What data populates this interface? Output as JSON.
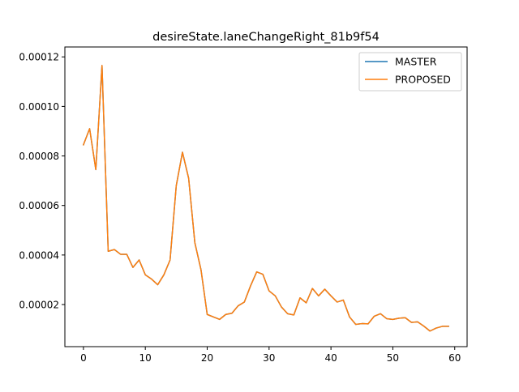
{
  "chart_data": {
    "type": "line",
    "title": "desireState.laneChangeRight_81b9f54",
    "xlabel": "",
    "ylabel": "",
    "xlim": [
      -3,
      62
    ],
    "ylim": [
      3e-06,
      0.000124
    ],
    "xticks": [
      0,
      10,
      20,
      30,
      40,
      50,
      60
    ],
    "xtick_labels": [
      "0",
      "10",
      "20",
      "30",
      "40",
      "50",
      "60"
    ],
    "yticks": [
      2e-05,
      4e-05,
      6e-05,
      8e-05,
      0.0001,
      0.00012
    ],
    "ytick_labels": [
      "0.00002",
      "0.00004",
      "0.00006",
      "0.00008",
      "0.00010",
      "0.00012"
    ],
    "grid": false,
    "legend_position": "top-right",
    "x": [
      0,
      1,
      2,
      3,
      4,
      5,
      6,
      7,
      8,
      9,
      10,
      11,
      12,
      13,
      14,
      15,
      16,
      17,
      18,
      19,
      20,
      21,
      22,
      23,
      24,
      25,
      26,
      27,
      28,
      29,
      30,
      31,
      32,
      33,
      34,
      35,
      36,
      37,
      38,
      39,
      40,
      41,
      42,
      43,
      44,
      45,
      46,
      47,
      48,
      49,
      50,
      51,
      52,
      53,
      54,
      55,
      56,
      57,
      58,
      59
    ],
    "series": [
      {
        "name": "MASTER",
        "color": "#1f77b4",
        "values": [
          8.45e-05,
          9.1e-05,
          7.45e-05,
          0.0001165,
          4.15e-05,
          4.22e-05,
          4.03e-05,
          4.03e-05,
          3.5e-05,
          3.8e-05,
          3.2e-05,
          3.03e-05,
          2.8e-05,
          3.2e-05,
          3.8e-05,
          6.8e-05,
          8.15e-05,
          7.1e-05,
          4.5e-05,
          3.4e-05,
          1.6e-05,
          1.5e-05,
          1.4e-05,
          1.6e-05,
          1.65e-05,
          1.95e-05,
          2.1e-05,
          2.75e-05,
          3.32e-05,
          3.22e-05,
          2.55e-05,
          2.35e-05,
          1.9e-05,
          1.63e-05,
          1.58e-05,
          2.27e-05,
          2.07e-05,
          2.65e-05,
          2.35e-05,
          2.62e-05,
          2.35e-05,
          2.1e-05,
          2.18e-05,
          1.5e-05,
          1.2e-05,
          1.23e-05,
          1.22e-05,
          1.53e-05,
          1.63e-05,
          1.43e-05,
          1.4e-05,
          1.45e-05,
          1.47e-05,
          1.28e-05,
          1.3e-05,
          1.13e-05,
          9.3e-06,
          1.05e-05,
          1.12e-05,
          1.12e-05
        ]
      },
      {
        "name": "PROPOSED",
        "color": "#ff7f0e",
        "values": [
          8.45e-05,
          9.1e-05,
          7.45e-05,
          0.0001165,
          4.15e-05,
          4.22e-05,
          4.03e-05,
          4.03e-05,
          3.5e-05,
          3.8e-05,
          3.2e-05,
          3.03e-05,
          2.8e-05,
          3.2e-05,
          3.8e-05,
          6.8e-05,
          8.15e-05,
          7.1e-05,
          4.5e-05,
          3.4e-05,
          1.6e-05,
          1.5e-05,
          1.4e-05,
          1.6e-05,
          1.65e-05,
          1.95e-05,
          2.1e-05,
          2.75e-05,
          3.32e-05,
          3.22e-05,
          2.55e-05,
          2.35e-05,
          1.9e-05,
          1.63e-05,
          1.58e-05,
          2.27e-05,
          2.07e-05,
          2.65e-05,
          2.35e-05,
          2.62e-05,
          2.35e-05,
          2.1e-05,
          2.18e-05,
          1.5e-05,
          1.2e-05,
          1.23e-05,
          1.22e-05,
          1.53e-05,
          1.63e-05,
          1.43e-05,
          1.4e-05,
          1.45e-05,
          1.47e-05,
          1.28e-05,
          1.3e-05,
          1.13e-05,
          9.3e-06,
          1.05e-05,
          1.12e-05,
          1.12e-05
        ]
      }
    ]
  }
}
